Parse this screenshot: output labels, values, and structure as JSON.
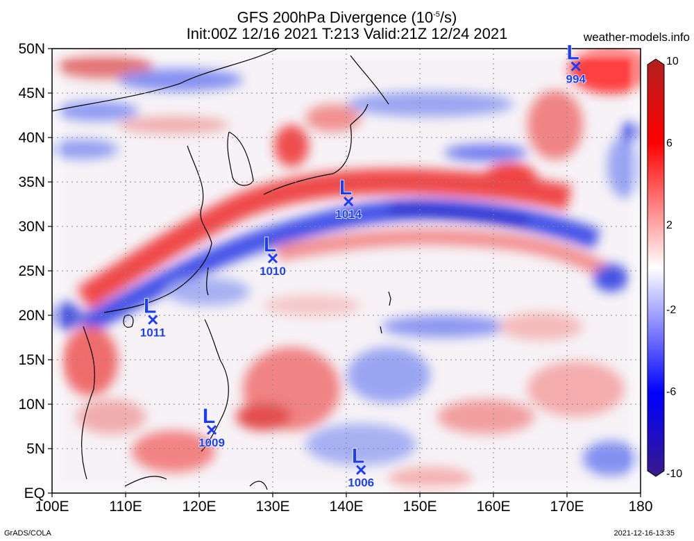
{
  "title": {
    "line1": "GFS 200hPa Divergence (10",
    "line1_sup": "-5",
    "line1_end": "/s)",
    "line2": "Init:00Z 12/16 2021 T:213 Valid:21Z 12/24 2021"
  },
  "site": "weather-models.info",
  "credit": "GrADS/COLA",
  "timestamp": "2021-12-16-13:35",
  "map": {
    "lon_range": [
      100,
      180
    ],
    "lat_range": [
      0,
      50
    ],
    "lat_labels": [
      "50N",
      "45N",
      "40N",
      "35N",
      "30N",
      "25N",
      "20N",
      "15N",
      "10N",
      "5N",
      "EQ"
    ],
    "lat_values": [
      50,
      45,
      40,
      35,
      30,
      25,
      20,
      15,
      10,
      5,
      0
    ],
    "lon_labels": [
      "100E",
      "110E",
      "120E",
      "130E",
      "140E",
      "150E",
      "160E",
      "170E",
      "180"
    ],
    "lon_values": [
      100,
      110,
      120,
      130,
      140,
      150,
      160,
      170,
      180
    ],
    "low_color": "#1a3cff",
    "lows": [
      {
        "label": "L",
        "value": "994",
        "lon": 171.2,
        "lat": 48.0
      },
      {
        "label": "L",
        "value": "1014",
        "lon": 140.3,
        "lat": 32.8
      },
      {
        "label": "L",
        "value": "1010",
        "lon": 130.0,
        "lat": 26.4
      },
      {
        "label": "L",
        "value": "1011",
        "lon": 113.7,
        "lat": 19.5
      },
      {
        "label": "L",
        "value": "1009",
        "lon": 121.7,
        "lat": 7.1
      },
      {
        "label": "L",
        "value": "1006",
        "lon": 142.0,
        "lat": 2.6
      }
    ]
  },
  "colorbar": {
    "labels": [
      "10",
      "6",
      "2",
      "-2",
      "-6",
      "-10"
    ],
    "values": [
      10,
      6,
      2,
      -2,
      -6,
      -10
    ],
    "colors": [
      "#3a1a8a",
      "#0000ff",
      "#ffffff",
      "#ff0000",
      "#b02020"
    ]
  }
}
